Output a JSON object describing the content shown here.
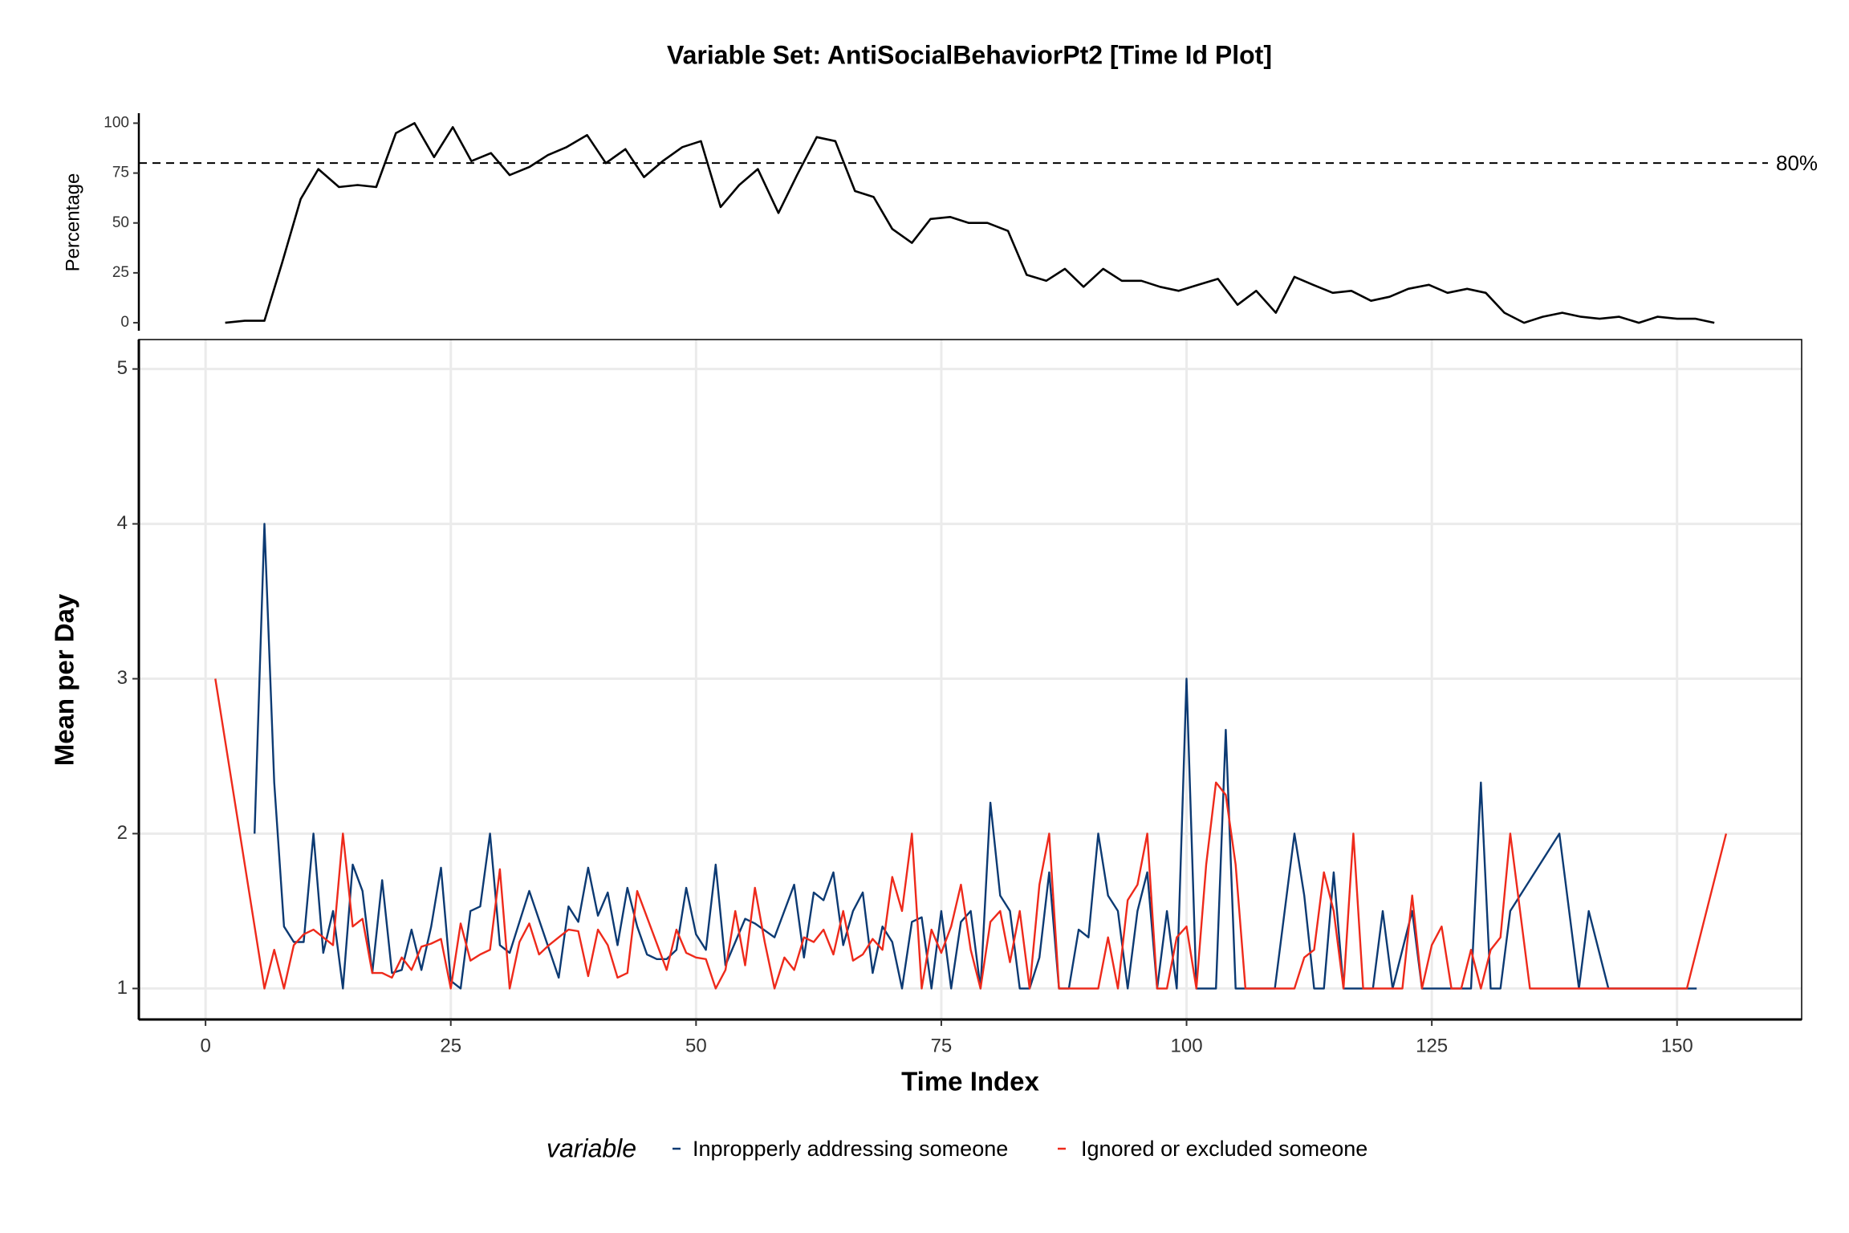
{
  "chart_data": [
    {
      "type": "line",
      "title": "Variable Set: AntiSocialBehaviorPt2 [Time Id Plot]",
      "ylabel": "Percentage",
      "color": "#000000",
      "x": [
        2,
        4,
        6,
        7.8,
        9.7,
        11.5,
        13.6,
        15.5,
        17.4,
        19.4,
        21.3,
        23.3,
        25.2,
        27.1,
        29.1,
        31,
        33,
        34.9,
        36.8,
        38.9,
        40.8,
        42.8,
        44.7,
        46.6,
        48.6,
        50.5,
        52.5,
        54.4,
        56.3,
        58.4,
        60.3,
        62.3,
        64.2,
        66.2,
        68.1,
        70,
        72,
        73.9,
        75.9,
        77.8,
        79.7,
        81.8,
        83.7,
        85.7,
        87.6,
        89.5,
        91.5,
        93.4,
        95.4,
        97.3,
        99.2,
        101.2,
        103.2,
        105.2,
        107.1,
        109.1,
        111,
        112.9,
        114.9,
        116.8,
        118.8,
        120.7,
        122.6,
        124.7,
        126.6,
        128.6,
        130.5,
        132.4,
        134.4,
        136.3,
        138.3,
        140.2,
        142.1,
        144.1,
        146.1,
        148,
        150,
        151.9,
        153.8
      ],
      "values": [
        0,
        1,
        1,
        30,
        62,
        77,
        68,
        69,
        68,
        95,
        100,
        83,
        98,
        81,
        85,
        74,
        78,
        84,
        88,
        94,
        80,
        87,
        73,
        81,
        88,
        91,
        58,
        69,
        77,
        55,
        74,
        93,
        91,
        66,
        63,
        47,
        40,
        52,
        53,
        50,
        50,
        46,
        24,
        21,
        27,
        18,
        27,
        21,
        21,
        18,
        16,
        19,
        22,
        9,
        16,
        5,
        23,
        19,
        15,
        16,
        11,
        13,
        17,
        19,
        15,
        17,
        15,
        5,
        0,
        3,
        5,
        3,
        2,
        3,
        0,
        3,
        2,
        2,
        0
      ],
      "xlim": [
        -6.8,
        162.7
      ],
      "ylim": [
        -4,
        105
      ],
      "yticks": [
        0,
        25,
        50,
        75,
        100
      ],
      "reference_line": {
        "value": 80,
        "label": "80%"
      }
    },
    {
      "type": "line",
      "xlabel": "Time Index",
      "ylabel": "Mean per Day",
      "legend_title": "variable",
      "grid": true,
      "xlim": [
        -6.8,
        162.7
      ],
      "ylim": [
        0.8,
        5.19
      ],
      "xticks": [
        0,
        25,
        50,
        75,
        100,
        125,
        150
      ],
      "yticks": [
        1,
        2,
        3,
        4,
        5
      ],
      "series": [
        {
          "name": "Inpropperly addressing someone",
          "color": "#0c3a73",
          "x": [
            5,
            6,
            7,
            8,
            9,
            10,
            11,
            12,
            13,
            14,
            15,
            16,
            17,
            18,
            19,
            20,
            21,
            22,
            23,
            24,
            25,
            26,
            27,
            28,
            29,
            30,
            31,
            33,
            36,
            37,
            38,
            39,
            40,
            41,
            42,
            43,
            44,
            45,
            46,
            47,
            48,
            49,
            50,
            51,
            52,
            53,
            55,
            56,
            58,
            60,
            61,
            62,
            63,
            64,
            65,
            66,
            67,
            68,
            69,
            70,
            71,
            72,
            73,
            74,
            75,
            76,
            77,
            78,
            79,
            80,
            81,
            82,
            83,
            84,
            85,
            86,
            87,
            88,
            89,
            90,
            91,
            92,
            93,
            94,
            95,
            96,
            97,
            98,
            99,
            100,
            101,
            103,
            104,
            105,
            109,
            111,
            112,
            113,
            114,
            115,
            116,
            119,
            120,
            121,
            123,
            124,
            129,
            130,
            131,
            132,
            133,
            138,
            140,
            141,
            143,
            152
          ],
          "values": [
            2,
            4,
            2.33,
            1.4,
            1.3,
            1.3,
            2,
            1.23,
            1.5,
            1,
            1.8,
            1.63,
            1.1,
            1.7,
            1.1,
            1.12,
            1.38,
            1.12,
            1.4,
            1.78,
            1.05,
            1,
            1.5,
            1.53,
            2,
            1.28,
            1.23,
            1.63,
            1.07,
            1.53,
            1.43,
            1.78,
            1.47,
            1.62,
            1.28,
            1.65,
            1.4,
            1.22,
            1.19,
            1.19,
            1.25,
            1.65,
            1.35,
            1.25,
            1.8,
            1.15,
            1.45,
            1.42,
            1.33,
            1.67,
            1.2,
            1.62,
            1.57,
            1.75,
            1.28,
            1.5,
            1.62,
            1.1,
            1.4,
            1.3,
            1,
            1.43,
            1.46,
            1,
            1.5,
            1,
            1.43,
            1.5,
            1,
            2.2,
            1.6,
            1.5,
            1,
            1,
            1.2,
            1.75,
            1,
            1,
            1.38,
            1.33,
            2,
            1.6,
            1.5,
            1,
            1.5,
            1.75,
            1,
            1.5,
            1,
            3,
            1,
            1,
            2.67,
            1,
            1,
            2,
            1.6,
            1,
            1,
            1.75,
            1,
            1,
            1.5,
            1,
            1.5,
            1,
            1,
            2.33,
            1,
            1,
            1.5,
            2,
            1,
            1.5,
            1,
            1
          ]
        },
        {
          "name": "Ignored or excluded someone",
          "color": "#ee2a1b",
          "x": [
            1,
            6,
            7,
            8,
            9,
            10,
            11,
            12,
            13,
            14,
            15,
            16,
            17,
            18,
            19,
            20,
            21,
            22,
            23,
            24,
            25,
            26,
            27,
            28,
            29,
            30,
            31,
            32,
            33,
            34,
            35,
            36,
            37,
            38,
            39,
            40,
            41,
            42,
            43,
            44,
            47,
            48,
            49,
            50,
            51,
            52,
            53,
            54,
            55,
            56,
            57,
            58,
            59,
            60,
            61,
            62,
            63,
            64,
            65,
            66,
            67,
            68,
            69,
            70,
            71,
            72,
            73,
            74,
            75,
            76,
            77,
            78,
            79,
            80,
            81,
            82,
            83,
            84,
            85,
            86,
            87,
            88,
            91,
            92,
            93,
            94,
            95,
            96,
            97,
            98,
            99,
            100,
            101,
            102,
            103,
            104,
            105,
            106,
            110,
            111,
            112,
            113,
            114,
            115,
            116,
            117,
            118,
            122,
            123,
            124,
            125,
            126,
            127,
            128,
            129,
            130,
            131,
            132,
            133,
            135,
            151,
            155
          ],
          "values": [
            3,
            1,
            1.25,
            1,
            1.28,
            1.35,
            1.38,
            1.33,
            1.28,
            2,
            1.4,
            1.45,
            1.1,
            1.1,
            1.07,
            1.2,
            1.12,
            1.27,
            1.29,
            1.32,
            1,
            1.42,
            1.18,
            1.22,
            1.25,
            1.77,
            1,
            1.3,
            1.42,
            1.22,
            1.28,
            1.33,
            1.38,
            1.37,
            1.08,
            1.38,
            1.28,
            1.07,
            1.1,
            1.63,
            1.12,
            1.38,
            1.23,
            1.2,
            1.19,
            1,
            1.12,
            1.5,
            1.15,
            1.65,
            1.3,
            1,
            1.2,
            1.12,
            1.33,
            1.3,
            1.38,
            1.22,
            1.5,
            1.18,
            1.22,
            1.32,
            1.25,
            1.72,
            1.5,
            2,
            1,
            1.38,
            1.23,
            1.4,
            1.67,
            1.25,
            1,
            1.43,
            1.5,
            1.17,
            1.5,
            1,
            1.67,
            2,
            1,
            1,
            1,
            1.33,
            1,
            1.57,
            1.67,
            2,
            1,
            1,
            1.33,
            1.4,
            1,
            1.8,
            2.33,
            2.25,
            1.8,
            1,
            1,
            1,
            1.2,
            1.25,
            1.75,
            1.5,
            1,
            2,
            1,
            1,
            1.6,
            1,
            1.28,
            1.4,
            1,
            1,
            1.25,
            1,
            1.25,
            1.33,
            2,
            1,
            1,
            2
          ]
        }
      ]
    }
  ]
}
